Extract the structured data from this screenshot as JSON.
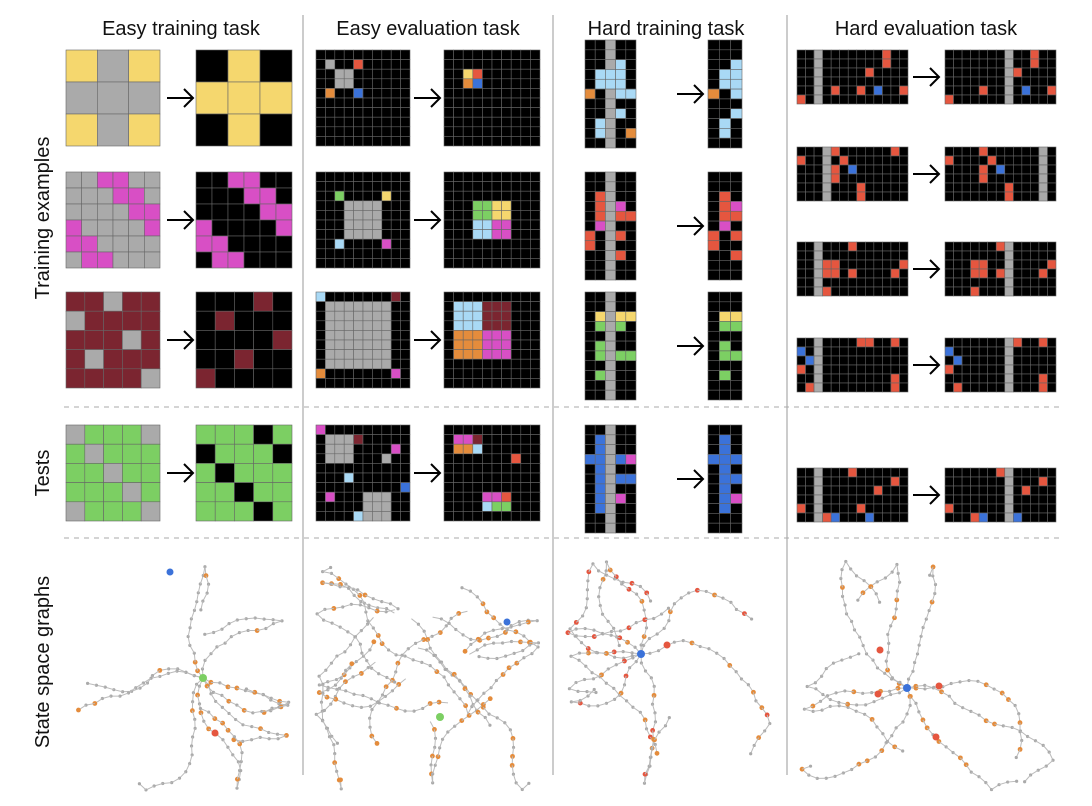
{
  "columns": [
    {
      "title": "Easy training task"
    },
    {
      "title": "Easy evaluation task"
    },
    {
      "title": "Hard training task"
    },
    {
      "title": "Hard evaluation task"
    }
  ],
  "rows": [
    {
      "label": "Training examples"
    },
    {
      "label": "Tests"
    },
    {
      "label": "State space graphs"
    }
  ]
}
